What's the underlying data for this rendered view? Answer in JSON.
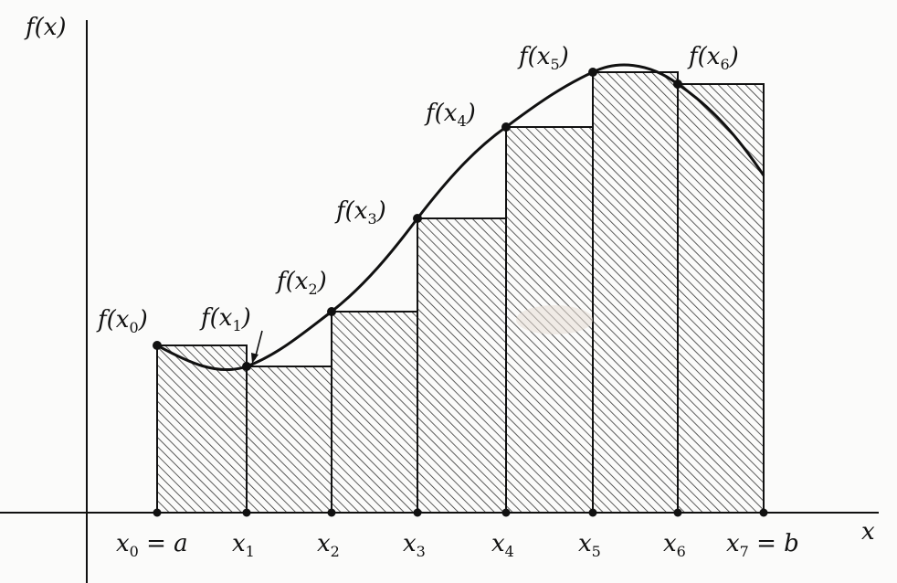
{
  "axes": {
    "y_label": "f(x)",
    "x_label": "x"
  },
  "x_labels": [
    {
      "main": "x",
      "sub": "0",
      "suffix": " = a"
    },
    {
      "main": "x",
      "sub": "1",
      "suffix": ""
    },
    {
      "main": "x",
      "sub": "2",
      "suffix": ""
    },
    {
      "main": "x",
      "sub": "3",
      "suffix": ""
    },
    {
      "main": "x",
      "sub": "4",
      "suffix": ""
    },
    {
      "main": "x",
      "sub": "5",
      "suffix": ""
    },
    {
      "main": "x",
      "sub": "6",
      "suffix": ""
    },
    {
      "main": "x",
      "sub": "7",
      "suffix": " = b"
    }
  ],
  "f_labels": [
    {
      "prefix": "f(x",
      "sub": "0",
      "close": ")"
    },
    {
      "prefix": "f(x",
      "sub": "1",
      "close": ")"
    },
    {
      "prefix": "f(x",
      "sub": "2",
      "close": ")"
    },
    {
      "prefix": "f(x",
      "sub": "3",
      "close": ")"
    },
    {
      "prefix": "f(x",
      "sub": "4",
      "close": ")"
    },
    {
      "prefix": "f(x",
      "sub": "5",
      "close": ")"
    },
    {
      "prefix": "f(x",
      "sub": "6",
      "close": ")"
    }
  ]
}
